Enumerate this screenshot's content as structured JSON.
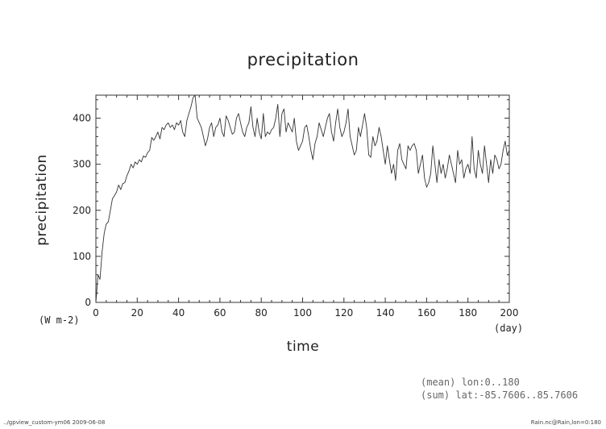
{
  "footer": {
    "left": "../gpview_custom-ym06  2009-06-08",
    "right": "Rain.nc@Rain,lon=0:180"
  },
  "notes": {
    "mean": "(mean) lon:0..180",
    "sum": "(sum) lat:-85.7606..85.7606"
  },
  "chart_data": {
    "type": "line",
    "title": "precipitation",
    "xlabel": "time",
    "ylabel": "precipitation",
    "xunit": "(day)",
    "yunit": "(W m-2)",
    "xlim": [
      0,
      200
    ],
    "ylim": [
      0,
      450
    ],
    "xticks": [
      0,
      20,
      40,
      60,
      80,
      100,
      120,
      140,
      160,
      180,
      200
    ],
    "yticks": [
      0,
      100,
      200,
      300,
      400
    ],
    "grid": false,
    "series": [
      {
        "color": "#333333",
        "x": [
          0,
          1,
          2,
          3,
          4,
          5,
          6,
          7,
          8,
          9,
          10,
          11,
          12,
          13,
          14,
          15,
          16,
          17,
          18,
          19,
          20,
          21,
          22,
          23,
          24,
          25,
          26,
          27,
          28,
          29,
          30,
          31,
          32,
          33,
          34,
          35,
          36,
          37,
          38,
          39,
          40,
          41,
          42,
          43,
          44,
          45,
          46,
          47,
          48,
          49,
          50,
          51,
          52,
          53,
          54,
          55,
          56,
          57,
          58,
          59,
          60,
          61,
          62,
          63,
          64,
          65,
          66,
          67,
          68,
          69,
          70,
          71,
          72,
          73,
          74,
          75,
          76,
          77,
          78,
          79,
          80,
          81,
          82,
          83,
          84,
          85,
          86,
          87,
          88,
          89,
          90,
          91,
          92,
          93,
          94,
          95,
          96,
          97,
          98,
          99,
          100,
          101,
          102,
          103,
          104,
          105,
          106,
          107,
          108,
          109,
          110,
          111,
          112,
          113,
          114,
          115,
          116,
          117,
          118,
          119,
          120,
          121,
          122,
          123,
          124,
          125,
          126,
          127,
          128,
          129,
          130,
          131,
          132,
          133,
          134,
          135,
          136,
          137,
          138,
          139,
          140,
          141,
          142,
          143,
          144,
          145,
          146,
          147,
          148,
          149,
          150,
          151,
          152,
          153,
          154,
          155,
          156,
          157,
          158,
          159,
          160,
          161,
          162,
          163,
          164,
          165,
          166,
          167,
          168,
          169,
          170,
          171,
          172,
          173,
          174,
          175,
          176,
          177,
          178,
          179,
          180,
          181,
          182,
          183,
          184,
          185,
          186,
          187,
          188,
          189,
          190,
          191,
          192,
          193,
          194,
          195,
          196,
          197,
          198,
          199,
          200
        ],
        "y": [
          0,
          60,
          50,
          110,
          150,
          170,
          175,
          200,
          225,
          232,
          240,
          255,
          245,
          258,
          260,
          275,
          285,
          300,
          292,
          305,
          300,
          310,
          305,
          318,
          315,
          325,
          330,
          358,
          352,
          360,
          370,
          355,
          380,
          375,
          385,
          390,
          380,
          385,
          375,
          390,
          385,
          395,
          370,
          360,
          395,
          410,
          425,
          445,
          450,
          400,
          390,
          380,
          360,
          340,
          355,
          380,
          390,
          360,
          380,
          385,
          400,
          370,
          360,
          405,
          395,
          380,
          365,
          370,
          400,
          410,
          390,
          370,
          360,
          380,
          390,
          425,
          380,
          360,
          400,
          370,
          355,
          410,
          360,
          370,
          365,
          375,
          380,
          400,
          430,
          360,
          410,
          420,
          370,
          390,
          380,
          370,
          400,
          350,
          330,
          340,
          350,
          380,
          385,
          360,
          330,
          310,
          345,
          360,
          390,
          375,
          360,
          380,
          400,
          410,
          370,
          350,
          390,
          420,
          380,
          360,
          370,
          390,
          420,
          360,
          340,
          320,
          330,
          380,
          360,
          385,
          410,
          380,
          320,
          315,
          360,
          340,
          350,
          380,
          360,
          330,
          300,
          340,
          310,
          280,
          300,
          265,
          330,
          345,
          310,
          300,
          290,
          340,
          330,
          340,
          345,
          330,
          280,
          300,
          320,
          270,
          250,
          260,
          280,
          340,
          300,
          260,
          310,
          280,
          300,
          270,
          290,
          320,
          300,
          280,
          260,
          330,
          300,
          310,
          270,
          290,
          300,
          280,
          360,
          290,
          270,
          330,
          300,
          280,
          340,
          300,
          260,
          310,
          280,
          320,
          310,
          290,
          300,
          330,
          350,
          320,
          330
        ]
      }
    ]
  }
}
